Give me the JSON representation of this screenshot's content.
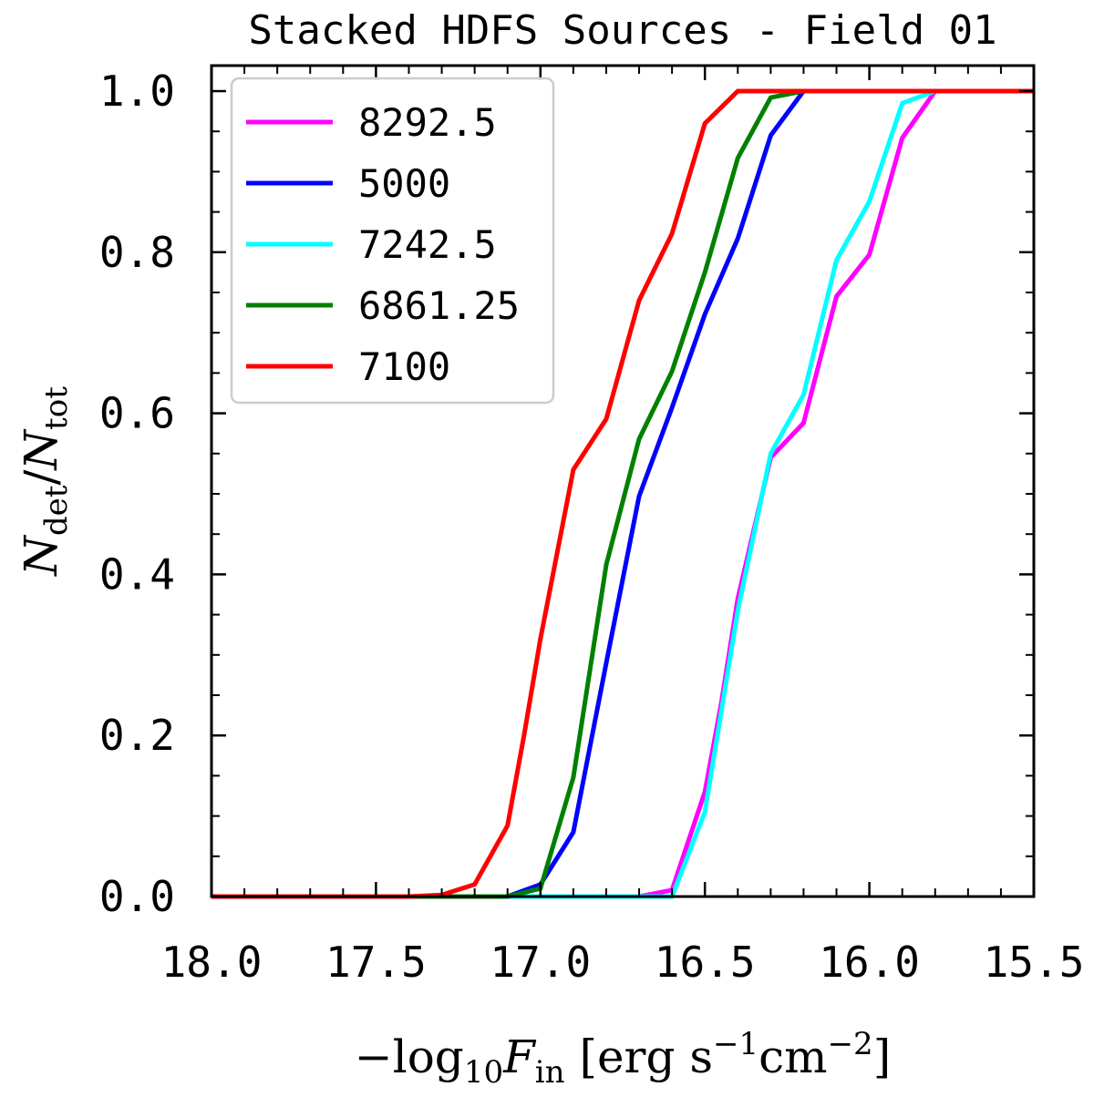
{
  "chart_data": {
    "type": "line",
    "title": "Stacked HDFS Sources - Field 01",
    "xlabel": {
      "minus": "−",
      "log": "log",
      "log_sub": "10",
      "var": "F",
      "var_sub": "in",
      "units_open": " [erg s",
      "units_exp1": "−1",
      "units_mid": "cm",
      "units_exp2": "−2",
      "units_close": "]"
    },
    "ylabel": {
      "num": "N",
      "num_sub": "det",
      "slash": "/",
      "den": "N",
      "den_sub": "tot"
    },
    "xlim": [
      18.0,
      15.5
    ],
    "ylim": [
      0.0,
      1.0
    ],
    "x_ticks": [
      "18.0",
      "17.5",
      "17.0",
      "16.5",
      "16.0",
      "15.5"
    ],
    "y_ticks": [
      "0.0",
      "0.2",
      "0.4",
      "0.6",
      "0.8",
      "1.0"
    ],
    "legend_position": "upper-left",
    "series": [
      {
        "name": "8292.5",
        "color": "#ff00ff",
        "x": [
          18.0,
          17.9,
          17.8,
          17.7,
          17.6,
          17.5,
          17.4,
          17.3,
          17.2,
          17.1,
          17.0,
          16.9,
          16.8,
          16.7,
          16.6,
          16.5,
          16.45,
          16.4,
          16.3,
          16.2,
          16.1,
          16.0,
          15.9,
          15.8,
          15.7,
          15.6,
          15.5
        ],
        "y": [
          0.0,
          0.0,
          0.0,
          0.0,
          0.0,
          0.0,
          0.0,
          0.0,
          0.0,
          0.0,
          0.0,
          0.0,
          0.0,
          0.0,
          0.008,
          0.13,
          0.24,
          0.37,
          0.545,
          0.588,
          0.745,
          0.797,
          0.942,
          1.0,
          1.0,
          1.0,
          1.0
        ]
      },
      {
        "name": "5000",
        "color": "#0000ff",
        "x": [
          18.0,
          17.9,
          17.8,
          17.7,
          17.6,
          17.5,
          17.4,
          17.3,
          17.2,
          17.1,
          17.0,
          16.9,
          16.8,
          16.7,
          16.6,
          16.5,
          16.4,
          16.3,
          16.2,
          16.1,
          16.0,
          15.9,
          15.8,
          15.7,
          15.6,
          15.5
        ],
        "y": [
          0.0,
          0.0,
          0.0,
          0.0,
          0.0,
          0.0,
          0.0,
          0.0,
          0.0,
          0.0,
          0.015,
          0.08,
          0.29,
          0.497,
          0.607,
          0.723,
          0.817,
          0.945,
          1.0,
          1.0,
          1.0,
          1.0,
          1.0,
          1.0,
          1.0,
          1.0
        ]
      },
      {
        "name": "7242.5",
        "color": "#00ffff",
        "x": [
          18.0,
          17.9,
          17.8,
          17.7,
          17.6,
          17.5,
          17.4,
          17.3,
          17.2,
          17.1,
          17.0,
          16.9,
          16.8,
          16.7,
          16.6,
          16.5,
          16.4,
          16.3,
          16.2,
          16.1,
          16.0,
          15.9,
          15.8,
          15.7,
          15.6,
          15.5
        ],
        "y": [
          0.0,
          0.0,
          0.0,
          0.0,
          0.0,
          0.0,
          0.0,
          0.0,
          0.0,
          0.0,
          0.0,
          0.0,
          0.0,
          0.0,
          0.0,
          0.105,
          0.355,
          0.55,
          0.623,
          0.79,
          0.863,
          0.985,
          1.0,
          1.0,
          1.0,
          1.0
        ]
      },
      {
        "name": "6861.25",
        "color": "#008000",
        "x": [
          18.0,
          17.9,
          17.8,
          17.7,
          17.6,
          17.5,
          17.4,
          17.3,
          17.2,
          17.1,
          17.0,
          16.9,
          16.8,
          16.7,
          16.6,
          16.5,
          16.4,
          16.3,
          16.2,
          16.1,
          16.0,
          15.9,
          15.8,
          15.7,
          15.6,
          15.5
        ],
        "y": [
          0.0,
          0.0,
          0.0,
          0.0,
          0.0,
          0.0,
          0.0,
          0.0,
          0.0,
          0.0,
          0.01,
          0.148,
          0.412,
          0.568,
          0.652,
          0.775,
          0.917,
          0.992,
          1.0,
          1.0,
          1.0,
          1.0,
          1.0,
          1.0,
          1.0,
          1.0
        ]
      },
      {
        "name": "7100",
        "color": "#ff0000",
        "x": [
          18.0,
          17.9,
          17.8,
          17.7,
          17.6,
          17.5,
          17.4,
          17.3,
          17.2,
          17.1,
          17.05,
          17.0,
          16.9,
          16.8,
          16.7,
          16.6,
          16.5,
          16.4,
          16.3,
          16.2,
          16.1,
          16.0,
          15.9,
          15.8,
          15.7,
          15.6,
          15.5
        ],
        "y": [
          0.0,
          0.0,
          0.0,
          0.0,
          0.0,
          0.0,
          0.0,
          0.002,
          0.015,
          0.088,
          0.2,
          0.32,
          0.53,
          0.593,
          0.74,
          0.823,
          0.96,
          1.0,
          1.0,
          1.0,
          1.0,
          1.0,
          1.0,
          1.0,
          1.0,
          1.0,
          1.0
        ]
      }
    ]
  }
}
